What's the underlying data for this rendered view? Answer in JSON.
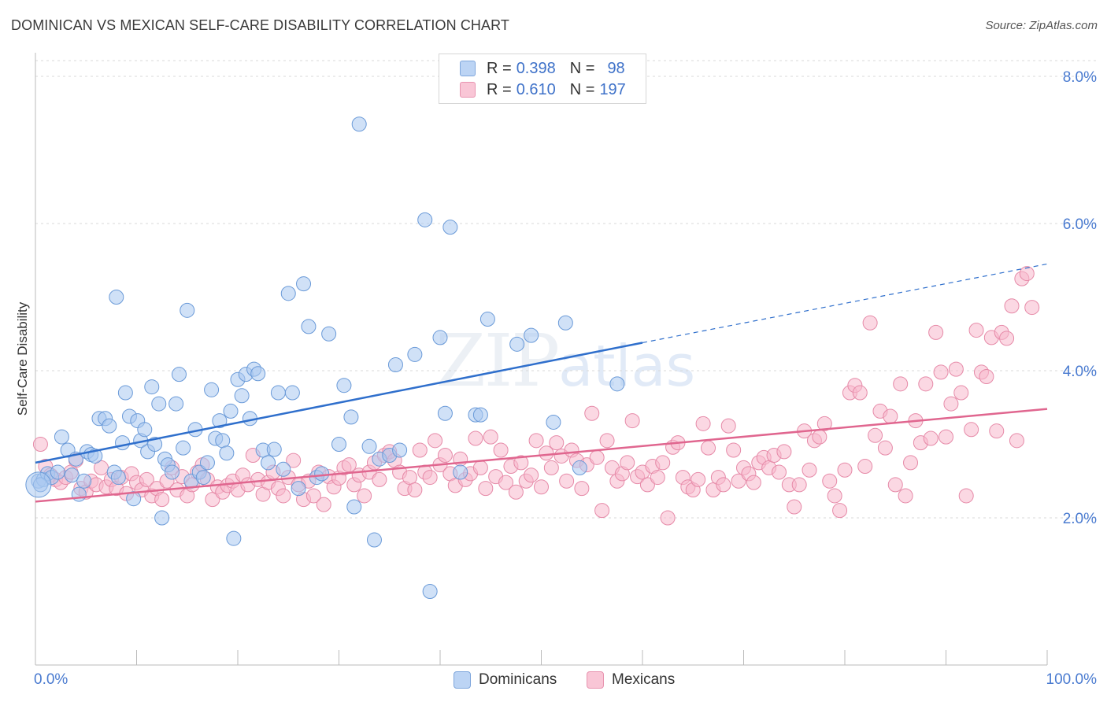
{
  "title": "DOMINICAN VS MEXICAN SELF-CARE DISABILITY CORRELATION CHART",
  "source": "Source: ZipAtlas.com",
  "watermark": {
    "zip": "ZIP",
    "atlas": "atlas"
  },
  "legend": {
    "dominican": {
      "r_label": "R =",
      "r_value": "0.398",
      "n_label": "N =",
      "n_value": "98"
    },
    "mexican": {
      "r_label": "R =",
      "r_value": "0.610",
      "n_label": "N =",
      "n_value": "197"
    }
  },
  "bottom_legend": {
    "dominican": "Dominicans",
    "mexican": "Mexicans"
  },
  "colors": {
    "dominican_fill": "#a9c8f0",
    "dominican_stroke": "#6a9ad8",
    "dominican_line": "#2f6fcc",
    "mexican_fill": "#f7b8cc",
    "mexican_stroke": "#e68aa8",
    "mexican_line": "#e0668f",
    "axis_label": "#4a7bd0",
    "grid": "#d9d9d9"
  },
  "chart_data": {
    "type": "scatter",
    "title": "DOMINICAN VS MEXICAN SELF-CARE DISABILITY CORRELATION CHART",
    "xlabel": "",
    "ylabel": "Self-Care Disability",
    "xlim": [
      0,
      100
    ],
    "ylim": [
      0,
      8.5
    ],
    "x_tick_labels": [
      "0.0%",
      "100.0%"
    ],
    "y_ticks": [
      2.0,
      4.0,
      6.0,
      8.0
    ],
    "y_tick_labels": [
      "2.0%",
      "4.0%",
      "6.0%",
      "8.0%"
    ],
    "grid": true,
    "series": [
      {
        "name": "Dominicans",
        "r": 0.398,
        "n": 98,
        "trend": {
          "x0": 0,
          "y0": 2.75,
          "x1": 60,
          "y1": 4.38,
          "dash_to_x": 100,
          "dash_to_y": 5.45
        },
        "points": [
          [
            0.3,
            2.5
          ],
          [
            0.8,
            2.52
          ],
          [
            1.2,
            2.6
          ],
          [
            1.6,
            2.55
          ],
          [
            2.2,
            2.62
          ],
          [
            2.6,
            3.1
          ],
          [
            3.2,
            2.92
          ],
          [
            3.6,
            2.58
          ],
          [
            4.0,
            2.8
          ],
          [
            4.3,
            2.32
          ],
          [
            4.8,
            2.5
          ],
          [
            5.1,
            2.9
          ],
          [
            5.5,
            2.86
          ],
          [
            5.9,
            2.84
          ],
          [
            6.3,
            3.35
          ],
          [
            6.9,
            3.35
          ],
          [
            7.3,
            3.25
          ],
          [
            7.8,
            2.62
          ],
          [
            8.0,
            5.0
          ],
          [
            8.2,
            2.55
          ],
          [
            8.6,
            3.02
          ],
          [
            8.9,
            3.7
          ],
          [
            9.3,
            3.38
          ],
          [
            9.7,
            2.26
          ],
          [
            10.1,
            3.32
          ],
          [
            10.4,
            3.05
          ],
          [
            10.8,
            3.2
          ],
          [
            11.1,
            2.9
          ],
          [
            11.5,
            3.78
          ],
          [
            11.8,
            3.0
          ],
          [
            12.2,
            3.55
          ],
          [
            12.5,
            2.0
          ],
          [
            12.8,
            2.8
          ],
          [
            13.1,
            2.72
          ],
          [
            13.5,
            2.62
          ],
          [
            13.9,
            3.55
          ],
          [
            14.2,
            3.95
          ],
          [
            14.6,
            2.95
          ],
          [
            15.0,
            4.82
          ],
          [
            15.4,
            2.5
          ],
          [
            15.8,
            3.2
          ],
          [
            16.2,
            2.62
          ],
          [
            16.6,
            2.55
          ],
          [
            17.0,
            2.75
          ],
          [
            17.4,
            3.74
          ],
          [
            17.8,
            3.08
          ],
          [
            18.2,
            3.32
          ],
          [
            18.5,
            3.05
          ],
          [
            18.9,
            2.88
          ],
          [
            19.3,
            3.45
          ],
          [
            19.6,
            1.72
          ],
          [
            20.0,
            3.88
          ],
          [
            20.4,
            3.66
          ],
          [
            20.8,
            3.95
          ],
          [
            21.2,
            3.35
          ],
          [
            21.6,
            4.02
          ],
          [
            22.0,
            3.96
          ],
          [
            22.5,
            2.92
          ],
          [
            23.0,
            2.75
          ],
          [
            23.6,
            2.93
          ],
          [
            24.0,
            3.7
          ],
          [
            24.5,
            2.66
          ],
          [
            25.0,
            5.05
          ],
          [
            25.4,
            3.7
          ],
          [
            26.0,
            2.4
          ],
          [
            26.5,
            5.18
          ],
          [
            27.0,
            4.6
          ],
          [
            27.8,
            2.55
          ],
          [
            28.3,
            2.6
          ],
          [
            29.0,
            4.5
          ],
          [
            30.0,
            3.0
          ],
          [
            30.5,
            3.8
          ],
          [
            31.2,
            3.37
          ],
          [
            31.5,
            2.15
          ],
          [
            32.0,
            7.35
          ],
          [
            33.0,
            2.97
          ],
          [
            33.5,
            1.7
          ],
          [
            34.0,
            2.8
          ],
          [
            35.0,
            2.85
          ],
          [
            35.6,
            4.08
          ],
          [
            36.0,
            2.92
          ],
          [
            37.5,
            4.22
          ],
          [
            38.5,
            6.05
          ],
          [
            39.0,
            1.0
          ],
          [
            40.0,
            4.45
          ],
          [
            40.5,
            3.42
          ],
          [
            41.0,
            5.95
          ],
          [
            42.0,
            2.62
          ],
          [
            43.5,
            3.4
          ],
          [
            44.0,
            3.4
          ],
          [
            44.7,
            4.7
          ],
          [
            47.6,
            4.36
          ],
          [
            49.0,
            4.48
          ],
          [
            51.2,
            3.3
          ],
          [
            52.4,
            4.65
          ],
          [
            53.8,
            2.68
          ],
          [
            57.5,
            3.82
          ],
          [
            0.5,
            2.45
          ]
        ]
      },
      {
        "name": "Mexicans",
        "r": 0.61,
        "n": 197,
        "trend": {
          "x0": 0,
          "y0": 2.22,
          "x1": 100,
          "y1": 3.48
        },
        "points": [
          [
            0.5,
            3.0
          ],
          [
            1.0,
            2.7
          ],
          [
            1.5,
            2.58
          ],
          [
            2.0,
            2.52
          ],
          [
            2.5,
            2.48
          ],
          [
            3.0,
            2.55
          ],
          [
            3.5,
            2.62
          ],
          [
            4.0,
            2.78
          ],
          [
            4.5,
            2.4
          ],
          [
            5.0,
            2.35
          ],
          [
            5.5,
            2.5
          ],
          [
            6.0,
            2.45
          ],
          [
            6.5,
            2.68
          ],
          [
            7.0,
            2.42
          ],
          [
            7.5,
            2.52
          ],
          [
            8.0,
            2.4
          ],
          [
            8.5,
            2.55
          ],
          [
            9.0,
            2.33
          ],
          [
            9.5,
            2.6
          ],
          [
            10.0,
            2.48
          ],
          [
            10.5,
            2.38
          ],
          [
            11.0,
            2.52
          ],
          [
            11.5,
            2.3
          ],
          [
            12.0,
            2.4
          ],
          [
            12.5,
            2.25
          ],
          [
            13.0,
            2.5
          ],
          [
            13.5,
            2.68
          ],
          [
            14.0,
            2.38
          ],
          [
            14.5,
            2.56
          ],
          [
            15.0,
            2.3
          ],
          [
            15.5,
            2.45
          ],
          [
            16.0,
            2.62
          ],
          [
            16.5,
            2.72
          ],
          [
            17.0,
            2.52
          ],
          [
            17.5,
            2.25
          ],
          [
            18.0,
            2.42
          ],
          [
            18.5,
            2.35
          ],
          [
            19.0,
            2.44
          ],
          [
            19.5,
            2.5
          ],
          [
            20.0,
            2.38
          ],
          [
            20.5,
            2.58
          ],
          [
            21.0,
            2.45
          ],
          [
            21.5,
            2.85
          ],
          [
            22.0,
            2.52
          ],
          [
            22.5,
            2.32
          ],
          [
            23.0,
            2.48
          ],
          [
            23.5,
            2.62
          ],
          [
            24.0,
            2.4
          ],
          [
            24.5,
            2.3
          ],
          [
            25.0,
            2.55
          ],
          [
            25.5,
            2.78
          ],
          [
            26.0,
            2.45
          ],
          [
            26.5,
            2.25
          ],
          [
            27.0,
            2.5
          ],
          [
            27.5,
            2.3
          ],
          [
            28.0,
            2.62
          ],
          [
            28.5,
            2.18
          ],
          [
            29.0,
            2.56
          ],
          [
            29.5,
            2.42
          ],
          [
            30.0,
            2.54
          ],
          [
            30.5,
            2.68
          ],
          [
            31.0,
            2.72
          ],
          [
            31.5,
            2.45
          ],
          [
            32.0,
            2.58
          ],
          [
            32.5,
            2.3
          ],
          [
            33.0,
            2.62
          ],
          [
            33.5,
            2.75
          ],
          [
            34.0,
            2.52
          ],
          [
            34.5,
            2.85
          ],
          [
            35.0,
            2.9
          ],
          [
            35.5,
            2.78
          ],
          [
            36.0,
            2.62
          ],
          [
            36.5,
            2.4
          ],
          [
            37.0,
            2.55
          ],
          [
            37.5,
            2.38
          ],
          [
            38.0,
            2.92
          ],
          [
            38.5,
            2.62
          ],
          [
            39.0,
            2.55
          ],
          [
            39.5,
            3.05
          ],
          [
            40.0,
            2.72
          ],
          [
            40.5,
            2.85
          ],
          [
            41.0,
            2.6
          ],
          [
            41.5,
            2.44
          ],
          [
            42.0,
            2.8
          ],
          [
            42.5,
            2.52
          ],
          [
            43.0,
            2.6
          ],
          [
            43.5,
            3.08
          ],
          [
            44.0,
            2.68
          ],
          [
            44.5,
            2.4
          ],
          [
            45.0,
            3.1
          ],
          [
            45.5,
            2.56
          ],
          [
            46.0,
            2.92
          ],
          [
            46.5,
            2.48
          ],
          [
            47.0,
            2.7
          ],
          [
            47.5,
            2.35
          ],
          [
            48.0,
            2.75
          ],
          [
            48.5,
            2.5
          ],
          [
            49.0,
            2.58
          ],
          [
            49.5,
            3.05
          ],
          [
            50.0,
            2.42
          ],
          [
            50.5,
            2.88
          ],
          [
            51.0,
            2.68
          ],
          [
            51.5,
            3.02
          ],
          [
            52.0,
            2.84
          ],
          [
            52.5,
            2.5
          ],
          [
            53.0,
            2.92
          ],
          [
            53.5,
            2.78
          ],
          [
            54.0,
            2.4
          ],
          [
            54.5,
            2.72
          ],
          [
            55.0,
            3.42
          ],
          [
            55.5,
            2.82
          ],
          [
            56.0,
            2.1
          ],
          [
            56.5,
            3.05
          ],
          [
            57.0,
            2.68
          ],
          [
            57.5,
            2.5
          ],
          [
            58.0,
            2.6
          ],
          [
            58.5,
            2.75
          ],
          [
            59.0,
            3.32
          ],
          [
            59.5,
            2.56
          ],
          [
            60.0,
            2.62
          ],
          [
            60.5,
            2.45
          ],
          [
            61.0,
            2.7
          ],
          [
            61.5,
            2.55
          ],
          [
            62.0,
            2.75
          ],
          [
            62.5,
            2.0
          ],
          [
            63.0,
            2.96
          ],
          [
            63.5,
            3.02
          ],
          [
            64.0,
            2.55
          ],
          [
            64.5,
            2.42
          ],
          [
            65.0,
            2.38
          ],
          [
            65.5,
            2.52
          ],
          [
            66.0,
            3.28
          ],
          [
            66.5,
            2.95
          ],
          [
            67.0,
            2.38
          ],
          [
            67.5,
            2.55
          ],
          [
            68.0,
            2.45
          ],
          [
            68.5,
            3.25
          ],
          [
            69.0,
            2.92
          ],
          [
            69.5,
            2.5
          ],
          [
            70.0,
            2.68
          ],
          [
            70.5,
            2.6
          ],
          [
            71.0,
            2.48
          ],
          [
            71.5,
            2.75
          ],
          [
            72.0,
            2.82
          ],
          [
            72.5,
            2.68
          ],
          [
            73.0,
            2.85
          ],
          [
            73.5,
            2.62
          ],
          [
            74.0,
            2.9
          ],
          [
            74.5,
            2.45
          ],
          [
            75.0,
            2.15
          ],
          [
            75.5,
            2.45
          ],
          [
            76.0,
            3.18
          ],
          [
            76.5,
            2.65
          ],
          [
            77.0,
            3.05
          ],
          [
            77.5,
            3.1
          ],
          [
            78.0,
            3.28
          ],
          [
            78.5,
            2.5
          ],
          [
            79.0,
            2.3
          ],
          [
            79.5,
            2.1
          ],
          [
            80.0,
            2.65
          ],
          [
            80.5,
            3.7
          ],
          [
            81.0,
            3.8
          ],
          [
            81.5,
            3.7
          ],
          [
            82.0,
            2.7
          ],
          [
            82.5,
            4.65
          ],
          [
            83.0,
            3.12
          ],
          [
            83.5,
            3.45
          ],
          [
            84.0,
            2.95
          ],
          [
            84.5,
            3.38
          ],
          [
            85.0,
            2.45
          ],
          [
            85.5,
            3.82
          ],
          [
            86.0,
            2.3
          ],
          [
            86.5,
            2.75
          ],
          [
            87.0,
            3.32
          ],
          [
            87.5,
            3.02
          ],
          [
            88.0,
            3.82
          ],
          [
            88.5,
            3.08
          ],
          [
            89.0,
            4.52
          ],
          [
            89.5,
            3.98
          ],
          [
            90.0,
            3.1
          ],
          [
            90.5,
            3.55
          ],
          [
            91.0,
            4.02
          ],
          [
            91.5,
            3.7
          ],
          [
            92.0,
            2.3
          ],
          [
            92.5,
            3.2
          ],
          [
            93.0,
            4.55
          ],
          [
            93.5,
            3.98
          ],
          [
            94.0,
            3.92
          ],
          [
            94.5,
            4.45
          ],
          [
            95.0,
            3.18
          ],
          [
            95.5,
            4.52
          ],
          [
            96.0,
            4.44
          ],
          [
            96.5,
            4.88
          ],
          [
            97.0,
            3.05
          ],
          [
            97.5,
            5.25
          ],
          [
            98.0,
            5.32
          ],
          [
            98.5,
            4.86
          ]
        ]
      }
    ]
  }
}
